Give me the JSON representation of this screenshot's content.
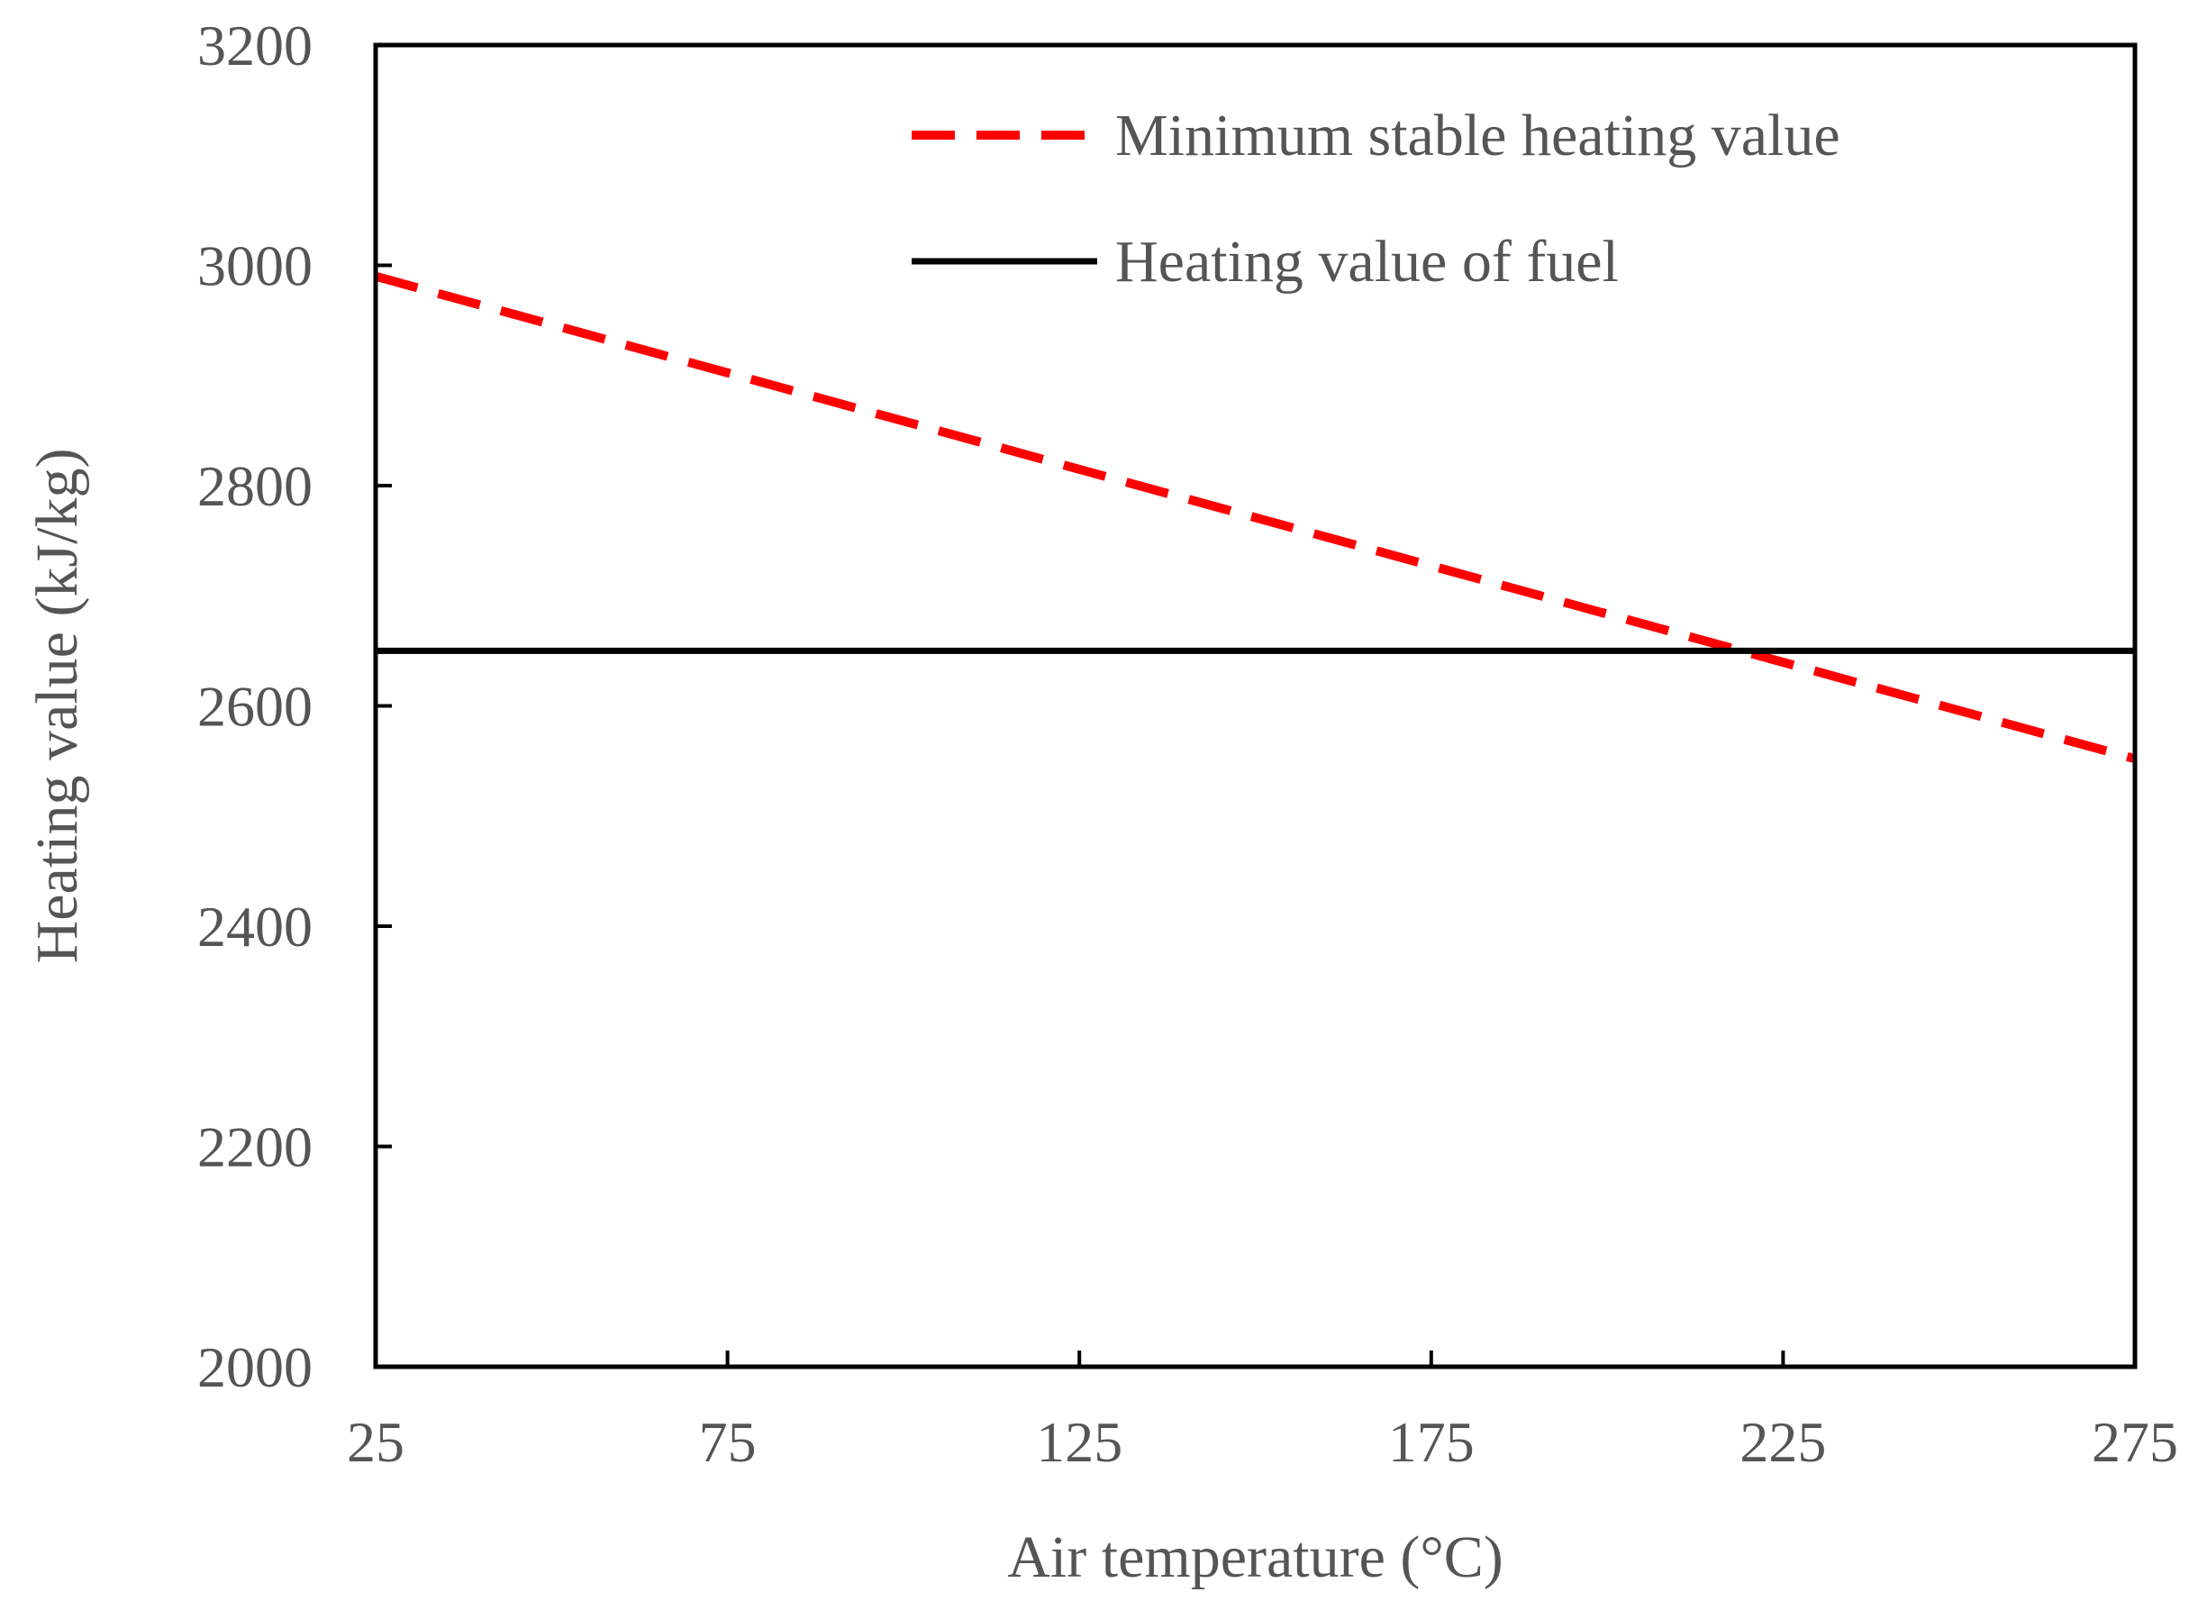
{
  "chart_data": {
    "type": "line",
    "title": "",
    "xlabel": "Air temperature (°C)",
    "ylabel": "Heating value (kJ/kg)",
    "xlim": [
      25,
      275
    ],
    "ylim": [
      2000,
      3200
    ],
    "xticks": [
      25,
      75,
      125,
      175,
      225,
      275
    ],
    "yticks": [
      2000,
      2200,
      2400,
      2600,
      2800,
      3000,
      3200
    ],
    "grid": false,
    "legend_position": "top-right",
    "series": [
      {
        "name": "Minimum stable heating value",
        "style": "dashed",
        "color": "#ff0000",
        "x": [
          25,
          275
        ],
        "y": [
          2990,
          2552
        ]
      },
      {
        "name": "Heating value of fuel",
        "style": "solid",
        "color": "#000000",
        "x": [
          25,
          275
        ],
        "y": [
          2650,
          2650
        ]
      }
    ]
  }
}
